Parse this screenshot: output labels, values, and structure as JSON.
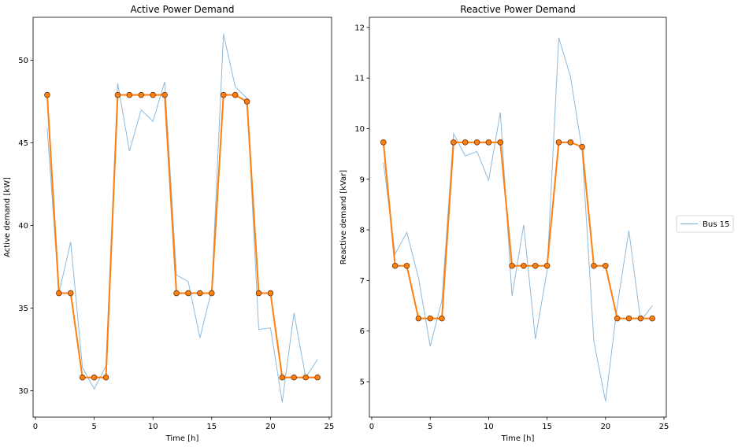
{
  "chart_data": [
    {
      "type": "line",
      "title": "Active Power Demand",
      "xlabel": "Time [h]",
      "ylabel": "Active demand [kW]",
      "xlim": [
        -0.2,
        25.2
      ],
      "ylim": [
        28.4,
        52.6
      ],
      "xticks": [
        0,
        5,
        10,
        15,
        20,
        25
      ],
      "yticks": [
        30,
        35,
        40,
        45,
        50
      ],
      "grid": false,
      "x": [
        1,
        2,
        3,
        4,
        5,
        6,
        7,
        8,
        9,
        10,
        11,
        12,
        13,
        14,
        15,
        16,
        17,
        18,
        19,
        20,
        21,
        22,
        23,
        24
      ],
      "series": [
        {
          "name": "Bus 15",
          "color": "#7aaed6",
          "values": [
            45.9,
            35.9,
            39.0,
            31.4,
            30.1,
            31.5,
            48.6,
            44.5,
            47.0,
            46.3,
            48.7,
            37.0,
            36.6,
            33.2,
            36.1,
            51.6,
            48.4,
            47.7,
            33.7,
            33.8,
            29.3,
            34.7,
            30.8,
            31.9
          ]
        },
        {
          "color": "#ff7f0e",
          "values": [
            47.9,
            35.9,
            35.9,
            30.8,
            30.8,
            30.8,
            47.9,
            47.9,
            47.9,
            47.9,
            47.9,
            35.9,
            35.9,
            35.9,
            35.9,
            47.9,
            47.9,
            47.5,
            35.9,
            35.9,
            30.8,
            30.8,
            30.8,
            30.8
          ]
        }
      ]
    },
    {
      "type": "line",
      "title": "Reactive Power Demand",
      "xlabel": "Time [h]",
      "ylabel": "Reactive demand [kVar]",
      "xlim": [
        -0.2,
        25.2
      ],
      "ylim": [
        4.3,
        12.2
      ],
      "xticks": [
        0,
        5,
        10,
        15,
        20,
        25
      ],
      "yticks": [
        5,
        6,
        7,
        8,
        9,
        10,
        11,
        12
      ],
      "grid": false,
      "x": [
        1,
        2,
        3,
        4,
        5,
        6,
        7,
        8,
        9,
        10,
        11,
        12,
        13,
        14,
        15,
        16,
        17,
        18,
        19,
        20,
        21,
        22,
        23,
        24
      ],
      "series": [
        {
          "name": "Bus 15",
          "color": "#7aaed6",
          "values": [
            9.33,
            7.52,
            7.95,
            7.05,
            5.7,
            6.6,
            9.9,
            9.46,
            9.55,
            8.98,
            10.32,
            6.69,
            8.1,
            5.84,
            7.2,
            11.8,
            11.03,
            9.57,
            5.8,
            4.61,
            6.5,
            7.98,
            6.2,
            6.5
          ]
        },
        {
          "color": "#ff7f0e",
          "values": [
            9.73,
            7.29,
            7.29,
            6.25,
            6.25,
            6.25,
            9.73,
            9.73,
            9.73,
            9.73,
            9.73,
            7.29,
            7.29,
            7.29,
            7.29,
            9.73,
            9.73,
            9.64,
            7.29,
            7.29,
            6.25,
            6.25,
            6.25,
            6.25
          ]
        }
      ]
    }
  ],
  "legend": {
    "placement": "right",
    "entries": [
      "Bus 15"
    ]
  }
}
